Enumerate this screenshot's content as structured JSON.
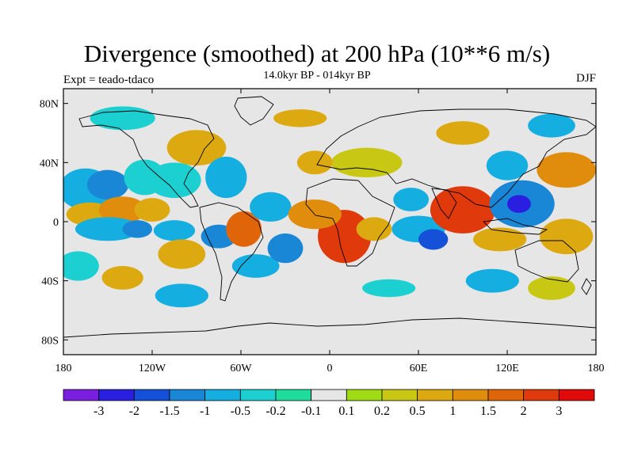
{
  "title": "Divergence (smoothed) at 200 hPa (10**6 m/s)",
  "experiment": "Expt = teado-tdaco",
  "period": "14.0kyr BP - 014kyr BP",
  "season": "DJF",
  "map": {
    "projection": "cylindrical equidistant",
    "lon_range": [
      -180,
      180
    ],
    "lat_range": [
      -90,
      90
    ],
    "background_color": "#e6e6e6",
    "lat_ticks": [
      {
        "value": 80,
        "label": "80N"
      },
      {
        "value": 40,
        "label": "40N"
      },
      {
        "value": 0,
        "label": "0"
      },
      {
        "value": -40,
        "label": "40S"
      },
      {
        "value": -80,
        "label": "80S"
      }
    ],
    "lon_ticks": [
      {
        "value": -180,
        "label": "180"
      },
      {
        "value": -120,
        "label": "120W"
      },
      {
        "value": -60,
        "label": "60W"
      },
      {
        "value": 0,
        "label": "0"
      },
      {
        "value": 60,
        "label": "60E"
      },
      {
        "value": 120,
        "label": "120E"
      },
      {
        "value": 180,
        "label": "180"
      }
    ]
  },
  "colorbar": {
    "colors": [
      "#7a1ee0",
      "#2a1ee0",
      "#1450d8",
      "#1a86d6",
      "#14aee0",
      "#1ccfd0",
      "#1edc9c",
      "#e6e6e6",
      "#a0dc14",
      "#c8c814",
      "#dcaa10",
      "#e08c0c",
      "#e06408",
      "#e03a0c",
      "#e00a0a"
    ],
    "labels": [
      "-3",
      "-2",
      "-1.5",
      "-1",
      "-0.5",
      "-0.2",
      "-0.1",
      "0.1",
      "0.2",
      "0.5",
      "1",
      "1.5",
      "2",
      "3"
    ]
  },
  "field": {
    "description": "Divergence anomaly blobs (lon, lat in degrees, color index into colorbar)",
    "blobs": [
      {
        "lon": -165,
        "lat": 22,
        "rx": 18,
        "ry": 14,
        "level": 4
      },
      {
        "lon": -150,
        "lat": 25,
        "rx": 14,
        "ry": 10,
        "level": 3
      },
      {
        "lon": -125,
        "lat": 30,
        "rx": 14,
        "ry": 12,
        "level": 5
      },
      {
        "lon": -162,
        "lat": 5,
        "rx": 16,
        "ry": 8,
        "level": 10
      },
      {
        "lon": -140,
        "lat": 8,
        "rx": 16,
        "ry": 9,
        "level": 11
      },
      {
        "lon": -120,
        "lat": 8,
        "rx": 12,
        "ry": 8,
        "level": 10
      },
      {
        "lon": -150,
        "lat": -5,
        "rx": 22,
        "ry": 8,
        "level": 4
      },
      {
        "lon": -130,
        "lat": -5,
        "rx": 10,
        "ry": 6,
        "level": 3
      },
      {
        "lon": -105,
        "lat": -6,
        "rx": 14,
        "ry": 7,
        "level": 4
      },
      {
        "lon": -100,
        "lat": -22,
        "rx": 16,
        "ry": 10,
        "level": 10
      },
      {
        "lon": -75,
        "lat": -10,
        "rx": 12,
        "ry": 8,
        "level": 3
      },
      {
        "lon": -58,
        "lat": -5,
        "rx": 12,
        "ry": 12,
        "level": 12
      },
      {
        "lon": -90,
        "lat": 50,
        "rx": 20,
        "ry": 12,
        "level": 10
      },
      {
        "lon": -105,
        "lat": 28,
        "rx": 18,
        "ry": 12,
        "level": 5
      },
      {
        "lon": -70,
        "lat": 30,
        "rx": 14,
        "ry": 14,
        "level": 4
      },
      {
        "lon": -40,
        "lat": 10,
        "rx": 14,
        "ry": 10,
        "level": 4
      },
      {
        "lon": -50,
        "lat": -30,
        "rx": 16,
        "ry": 8,
        "level": 4
      },
      {
        "lon": -30,
        "lat": -18,
        "rx": 12,
        "ry": 10,
        "level": 3
      },
      {
        "lon": 10,
        "lat": -10,
        "rx": 18,
        "ry": 18,
        "level": 13
      },
      {
        "lon": -10,
        "lat": 5,
        "rx": 18,
        "ry": 10,
        "level": 11
      },
      {
        "lon": 30,
        "lat": -5,
        "rx": 12,
        "ry": 8,
        "level": 10
      },
      {
        "lon": 25,
        "lat": 40,
        "rx": 24,
        "ry": 10,
        "level": 9
      },
      {
        "lon": -10,
        "lat": 40,
        "rx": 12,
        "ry": 8,
        "level": 10
      },
      {
        "lon": 55,
        "lat": 15,
        "rx": 12,
        "ry": 8,
        "level": 4
      },
      {
        "lon": 60,
        "lat": -5,
        "rx": 18,
        "ry": 9,
        "level": 4
      },
      {
        "lon": 70,
        "lat": -12,
        "rx": 10,
        "ry": 7,
        "level": 2
      },
      {
        "lon": 90,
        "lat": 8,
        "rx": 22,
        "ry": 16,
        "level": 13
      },
      {
        "lon": 130,
        "lat": 12,
        "rx": 22,
        "ry": 16,
        "level": 3
      },
      {
        "lon": 128,
        "lat": 12,
        "rx": 8,
        "ry": 6,
        "level": 1
      },
      {
        "lon": 115,
        "lat": -12,
        "rx": 18,
        "ry": 8,
        "level": 10
      },
      {
        "lon": 160,
        "lat": -10,
        "rx": 18,
        "ry": 12,
        "level": 10
      },
      {
        "lon": 160,
        "lat": 35,
        "rx": 20,
        "ry": 12,
        "level": 11
      },
      {
        "lon": 120,
        "lat": 38,
        "rx": 14,
        "ry": 10,
        "level": 4
      },
      {
        "lon": -170,
        "lat": -30,
        "rx": 14,
        "ry": 10,
        "level": 5
      },
      {
        "lon": -140,
        "lat": -38,
        "rx": 14,
        "ry": 8,
        "level": 10
      },
      {
        "lon": -100,
        "lat": -50,
        "rx": 18,
        "ry": 8,
        "level": 4
      },
      {
        "lon": 40,
        "lat": -45,
        "rx": 18,
        "ry": 6,
        "level": 5
      },
      {
        "lon": 110,
        "lat": -40,
        "rx": 18,
        "ry": 8,
        "level": 4
      },
      {
        "lon": 150,
        "lat": -45,
        "rx": 16,
        "ry": 8,
        "level": 9
      },
      {
        "lon": -140,
        "lat": 70,
        "rx": 22,
        "ry": 8,
        "level": 5
      },
      {
        "lon": -20,
        "lat": 70,
        "rx": 18,
        "ry": 6,
        "level": 10
      },
      {
        "lon": 90,
        "lat": 60,
        "rx": 18,
        "ry": 8,
        "level": 10
      },
      {
        "lon": 150,
        "lat": 65,
        "rx": 16,
        "ry": 8,
        "level": 4
      }
    ]
  }
}
